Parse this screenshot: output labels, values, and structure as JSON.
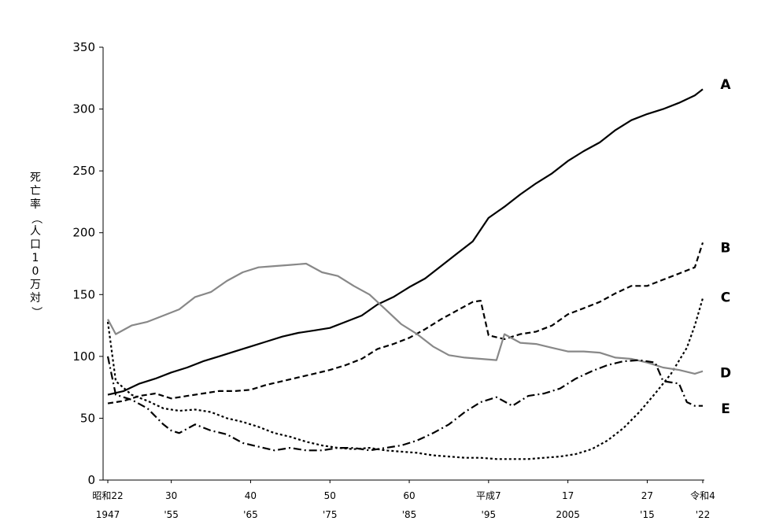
{
  "chart_data": {
    "type": "line",
    "ylabel": "死亡率（人口10万対）",
    "ylim": [
      0,
      350
    ],
    "yticks": [
      0,
      50,
      100,
      150,
      200,
      250,
      300,
      350
    ],
    "x_range": [
      1947,
      2022
    ],
    "xticks": [
      {
        "x": 1947,
        "line1": "昭和22",
        "line2": "1947"
      },
      {
        "x": 1955,
        "line1": "30",
        "line2": "'55"
      },
      {
        "x": 1965,
        "line1": "40",
        "line2": "'65"
      },
      {
        "x": 1975,
        "line1": "50",
        "line2": "'75"
      },
      {
        "x": 1985,
        "line1": "60",
        "line2": "'85"
      },
      {
        "x": 1995,
        "line1": "平成7",
        "line2": "'95"
      },
      {
        "x": 2005,
        "line1": "17",
        "line2": "2005"
      },
      {
        "x": 2015,
        "line1": "27",
        "line2": "'15"
      },
      {
        "x": 2022,
        "line1": "令和4",
        "line2": "'22"
      }
    ],
    "series": [
      {
        "name": "A",
        "style": "solid",
        "color": "#000000",
        "label_y": 320,
        "points": [
          [
            1947,
            69
          ],
          [
            1949,
            72
          ],
          [
            1951,
            78
          ],
          [
            1953,
            82
          ],
          [
            1955,
            87
          ],
          [
            1957,
            91
          ],
          [
            1959,
            96
          ],
          [
            1961,
            100
          ],
          [
            1963,
            104
          ],
          [
            1965,
            108
          ],
          [
            1967,
            112
          ],
          [
            1969,
            116
          ],
          [
            1971,
            119
          ],
          [
            1973,
            121
          ],
          [
            1975,
            123
          ],
          [
            1977,
            128
          ],
          [
            1979,
            133
          ],
          [
            1981,
            142
          ],
          [
            1983,
            148
          ],
          [
            1985,
            156
          ],
          [
            1987,
            163
          ],
          [
            1989,
            173
          ],
          [
            1991,
            183
          ],
          [
            1993,
            193
          ],
          [
            1995,
            212
          ],
          [
            1997,
            221
          ],
          [
            1999,
            231
          ],
          [
            2001,
            240
          ],
          [
            2003,
            248
          ],
          [
            2005,
            258
          ],
          [
            2007,
            266
          ],
          [
            2009,
            273
          ],
          [
            2011,
            283
          ],
          [
            2013,
            291
          ],
          [
            2015,
            296
          ],
          [
            2017,
            300
          ],
          [
            2019,
            305
          ],
          [
            2021,
            311
          ],
          [
            2022,
            316
          ]
        ]
      },
      {
        "name": "B",
        "style": "dashed",
        "color": "#000000",
        "label_y": 188,
        "points": [
          [
            1947,
            62
          ],
          [
            1949,
            64
          ],
          [
            1951,
            68
          ],
          [
            1953,
            70
          ],
          [
            1955,
            66
          ],
          [
            1957,
            68
          ],
          [
            1959,
            70
          ],
          [
            1961,
            72
          ],
          [
            1963,
            72
          ],
          [
            1965,
            73
          ],
          [
            1967,
            77
          ],
          [
            1969,
            80
          ],
          [
            1971,
            83
          ],
          [
            1973,
            86
          ],
          [
            1975,
            89
          ],
          [
            1977,
            93
          ],
          [
            1979,
            98
          ],
          [
            1981,
            106
          ],
          [
            1983,
            110
          ],
          [
            1985,
            115
          ],
          [
            1987,
            122
          ],
          [
            1989,
            130
          ],
          [
            1991,
            137
          ],
          [
            1993,
            144
          ],
          [
            1994,
            145
          ],
          [
            1995,
            117
          ],
          [
            1997,
            114
          ],
          [
            1999,
            118
          ],
          [
            2001,
            120
          ],
          [
            2003,
            125
          ],
          [
            2005,
            134
          ],
          [
            2007,
            139
          ],
          [
            2009,
            144
          ],
          [
            2011,
            151
          ],
          [
            2013,
            157
          ],
          [
            2015,
            157
          ],
          [
            2017,
            162
          ],
          [
            2019,
            167
          ],
          [
            2021,
            172
          ],
          [
            2022,
            192
          ]
        ]
      },
      {
        "name": "C",
        "style": "dotted",
        "color": "#000000",
        "label_y": 148,
        "points": [
          [
            1947,
            128
          ],
          [
            1948,
            80
          ],
          [
            1950,
            69
          ],
          [
            1952,
            64
          ],
          [
            1954,
            58
          ],
          [
            1956,
            56
          ],
          [
            1958,
            57
          ],
          [
            1960,
            55
          ],
          [
            1962,
            50
          ],
          [
            1964,
            47
          ],
          [
            1966,
            43
          ],
          [
            1968,
            38
          ],
          [
            1970,
            35
          ],
          [
            1972,
            31
          ],
          [
            1974,
            28
          ],
          [
            1976,
            26
          ],
          [
            1978,
            25
          ],
          [
            1980,
            26
          ],
          [
            1982,
            24
          ],
          [
            1984,
            23
          ],
          [
            1986,
            22
          ],
          [
            1988,
            20
          ],
          [
            1990,
            19
          ],
          [
            1992,
            18
          ],
          [
            1994,
            18
          ],
          [
            1996,
            17
          ],
          [
            1998,
            17
          ],
          [
            2000,
            17
          ],
          [
            2002,
            18
          ],
          [
            2004,
            19
          ],
          [
            2006,
            21
          ],
          [
            2008,
            25
          ],
          [
            2010,
            32
          ],
          [
            2012,
            42
          ],
          [
            2014,
            55
          ],
          [
            2016,
            70
          ],
          [
            2018,
            86
          ],
          [
            2020,
            107
          ],
          [
            2021,
            125
          ],
          [
            2022,
            147
          ]
        ]
      },
      {
        "name": "D",
        "style": "solid",
        "color": "#888888",
        "label_y": 87,
        "points": [
          [
            1947,
            130
          ],
          [
            1948,
            118
          ],
          [
            1950,
            125
          ],
          [
            1952,
            128
          ],
          [
            1954,
            133
          ],
          [
            1956,
            138
          ],
          [
            1958,
            148
          ],
          [
            1960,
            152
          ],
          [
            1962,
            161
          ],
          [
            1964,
            168
          ],
          [
            1966,
            172
          ],
          [
            1968,
            173
          ],
          [
            1970,
            174
          ],
          [
            1972,
            175
          ],
          [
            1974,
            168
          ],
          [
            1976,
            165
          ],
          [
            1978,
            157
          ],
          [
            1980,
            150
          ],
          [
            1982,
            138
          ],
          [
            1984,
            126
          ],
          [
            1986,
            118
          ],
          [
            1988,
            108
          ],
          [
            1990,
            101
          ],
          [
            1992,
            99
          ],
          [
            1994,
            98
          ],
          [
            1996,
            97
          ],
          [
            1997,
            118
          ],
          [
            1999,
            111
          ],
          [
            2001,
            110
          ],
          [
            2003,
            107
          ],
          [
            2005,
            104
          ],
          [
            2007,
            104
          ],
          [
            2009,
            103
          ],
          [
            2011,
            99
          ],
          [
            2013,
            98
          ],
          [
            2015,
            95
          ],
          [
            2017,
            91
          ],
          [
            2019,
            89
          ],
          [
            2021,
            86
          ],
          [
            2022,
            88
          ]
        ]
      },
      {
        "name": "E",
        "style": "dashdot",
        "color": "#000000",
        "label_y": 58,
        "points": [
          [
            1947,
            100
          ],
          [
            1948,
            69
          ],
          [
            1950,
            65
          ],
          [
            1952,
            58
          ],
          [
            1954,
            45
          ],
          [
            1955,
            40
          ],
          [
            1956,
            38
          ],
          [
            1958,
            45
          ],
          [
            1960,
            40
          ],
          [
            1962,
            37
          ],
          [
            1964,
            30
          ],
          [
            1966,
            27
          ],
          [
            1968,
            24
          ],
          [
            1970,
            26
          ],
          [
            1972,
            24
          ],
          [
            1974,
            24
          ],
          [
            1976,
            26
          ],
          [
            1978,
            26
          ],
          [
            1980,
            24
          ],
          [
            1982,
            26
          ],
          [
            1984,
            28
          ],
          [
            1986,
            32
          ],
          [
            1988,
            38
          ],
          [
            1990,
            45
          ],
          [
            1992,
            55
          ],
          [
            1994,
            63
          ],
          [
            1996,
            67
          ],
          [
            1998,
            60
          ],
          [
            2000,
            68
          ],
          [
            2002,
            70
          ],
          [
            2004,
            74
          ],
          [
            2006,
            82
          ],
          [
            2008,
            88
          ],
          [
            2010,
            93
          ],
          [
            2012,
            96
          ],
          [
            2014,
            97
          ],
          [
            2016,
            95
          ],
          [
            2017,
            80
          ],
          [
            2019,
            78
          ],
          [
            2020,
            63
          ],
          [
            2021,
            60
          ],
          [
            2022,
            60
          ]
        ]
      }
    ]
  }
}
